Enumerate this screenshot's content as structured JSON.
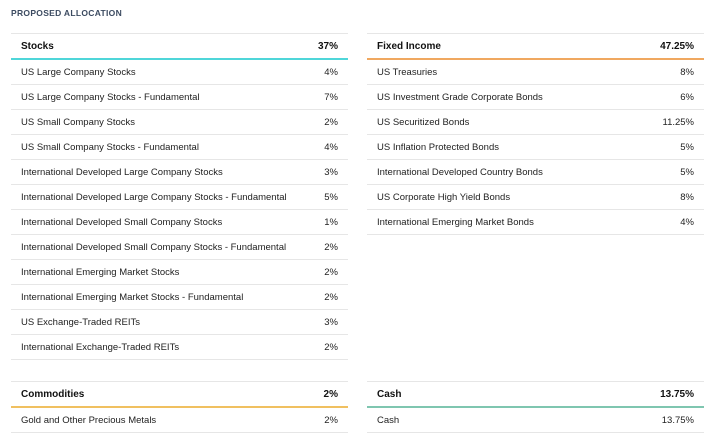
{
  "section_title": "PROPOSED ALLOCATION",
  "colors": {
    "stocks": "#4fd6d9",
    "fixed_income": "#f0a860",
    "commodities": "#f0c060",
    "cash": "#7fc6b0"
  },
  "stocks": {
    "title": "Stocks",
    "total": "37%",
    "items": [
      {
        "label": "US Large Company Stocks",
        "value": "4%"
      },
      {
        "label": "US Large Company Stocks - Fundamental",
        "value": "7%"
      },
      {
        "label": "US Small Company Stocks",
        "value": "2%"
      },
      {
        "label": "US Small Company Stocks - Fundamental",
        "value": "4%"
      },
      {
        "label": "International Developed Large Company Stocks",
        "value": "3%"
      },
      {
        "label": "International Developed Large Company Stocks - Fundamental",
        "value": "5%"
      },
      {
        "label": "International Developed Small Company Stocks",
        "value": "1%"
      },
      {
        "label": "International Developed Small Company Stocks - Fundamental",
        "value": "2%"
      },
      {
        "label": "International Emerging Market Stocks",
        "value": "2%"
      },
      {
        "label": "International Emerging Market Stocks - Fundamental",
        "value": "2%"
      },
      {
        "label": "US Exchange-Traded REITs",
        "value": "3%"
      },
      {
        "label": "International Exchange-Traded REITs",
        "value": "2%"
      }
    ]
  },
  "fixed_income": {
    "title": "Fixed Income",
    "total": "47.25%",
    "items": [
      {
        "label": "US Treasuries",
        "value": "8%"
      },
      {
        "label": "US Investment Grade Corporate Bonds",
        "value": "6%"
      },
      {
        "label": "US Securitized Bonds",
        "value": "11.25%"
      },
      {
        "label": "US Inflation Protected Bonds",
        "value": "5%"
      },
      {
        "label": "International Developed Country Bonds",
        "value": "5%"
      },
      {
        "label": "US Corporate High Yield Bonds",
        "value": "8%"
      },
      {
        "label": "International Emerging Market Bonds",
        "value": "4%"
      }
    ]
  },
  "commodities": {
    "title": "Commodities",
    "total": "2%",
    "items": [
      {
        "label": "Gold and Other Precious Metals",
        "value": "2%"
      }
    ]
  },
  "cash": {
    "title": "Cash",
    "total": "13.75%",
    "items": [
      {
        "label": "Cash",
        "value": "13.75%"
      }
    ]
  }
}
